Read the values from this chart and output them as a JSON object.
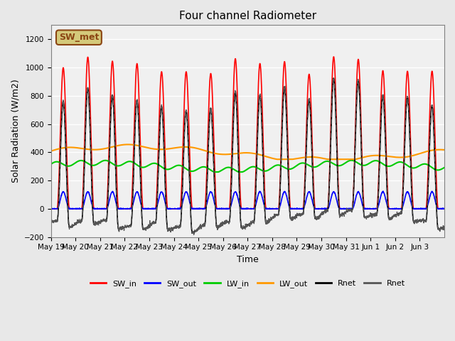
{
  "title": "Four channel Radiometer",
  "xlabel": "Time",
  "ylabel": "Solar Radiation (W/m2)",
  "ylim": [
    -200,
    1300
  ],
  "yticks": [
    -200,
    0,
    200,
    400,
    600,
    800,
    1000,
    1200
  ],
  "background_color": "#e8e8e8",
  "annotation_text": "SW_met",
  "annotation_bg": "#d4c97a",
  "annotation_border": "#8b4513",
  "n_days": 16,
  "x_tick_positions": [
    0,
    1,
    2,
    3,
    4,
    5,
    6,
    7,
    8,
    9,
    10,
    11,
    12,
    13,
    14,
    15
  ],
  "x_tick_labels": [
    "May 19",
    "May 20",
    "May 21",
    "May 22",
    "May 23",
    "May 24",
    "May 25",
    "May 26",
    "May 27",
    "May 28",
    "May 29",
    "May 30",
    "May 31",
    "Jun 1",
    "Jun 2",
    "Jun 3"
  ],
  "legend_labels": [
    "SW_in",
    "SW_out",
    "LW_in",
    "LW_out",
    "Rnet",
    "Rnet"
  ],
  "legend_colors": [
    "#ff0000",
    "#0000ff",
    "#00cc00",
    "#ff9900",
    "#000000",
    "#555555"
  ]
}
